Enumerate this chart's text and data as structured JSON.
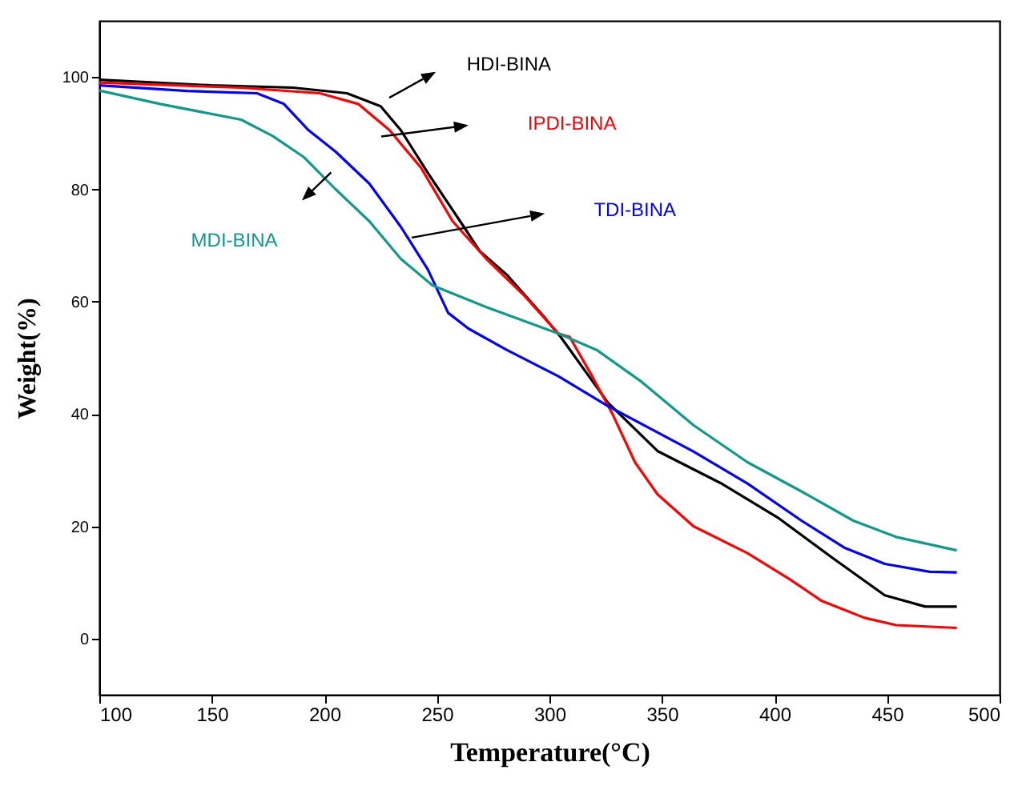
{
  "chart_data": {
    "type": "line",
    "xlabel": "Temperature(°C)",
    "ylabel": "Weight(%)",
    "xlim": [
      100,
      500
    ],
    "ylim": [
      -10,
      110
    ],
    "xticks": [
      100,
      150,
      200,
      250,
      300,
      350,
      400,
      450,
      500
    ],
    "yticks": [
      0,
      20,
      40,
      60,
      80,
      100
    ],
    "grid": false,
    "marker": "none",
    "line_style": "solid",
    "series": [
      {
        "name": "HDI-BINA",
        "color": "#000000",
        "x": [
          100,
          150,
          186,
          210,
          225,
          234,
          246,
          262,
          269,
          281,
          298,
          305,
          326,
          348,
          376,
          402,
          426,
          449,
          467,
          481
        ],
        "values": [
          99.5,
          98.5,
          98.1,
          97.1,
          94.8,
          90.5,
          82.9,
          73.3,
          69,
          64.8,
          57.1,
          53.7,
          42,
          33.4,
          27.7,
          21.4,
          14.3,
          7.7,
          5.7,
          5.7
        ]
      },
      {
        "name": "IPDI-BINA",
        "color": "#ff0000",
        "x": [
          100,
          163,
          198,
          215,
          229,
          243,
          257,
          272,
          289,
          304,
          309,
          319,
          328,
          338,
          348,
          364,
          388,
          407,
          421,
          440,
          454,
          481
        ],
        "values": [
          99,
          98.1,
          97.1,
          95.2,
          90.5,
          83.8,
          74.3,
          67.6,
          61,
          54.3,
          53.7,
          46.7,
          40,
          31.4,
          25.7,
          20,
          15.2,
          10.5,
          6.7,
          3.7,
          2.4,
          1.9
        ]
      },
      {
        "name": "TDI-BINA",
        "color": "#0000ff",
        "x": [
          100,
          139,
          170,
          182,
          193,
          205,
          220,
          234,
          246,
          255,
          264,
          281,
          304,
          326,
          364,
          388,
          412,
          431,
          449,
          469,
          481
        ],
        "values": [
          98.5,
          97.5,
          97.1,
          95.2,
          90.5,
          86.7,
          81,
          73.3,
          65.7,
          58,
          55.2,
          51.4,
          46.7,
          41.4,
          33.3,
          27.6,
          21,
          16.2,
          13.3,
          11.9,
          11.8
        ]
      },
      {
        "name": "MDI-BINA",
        "color": "#119a8a",
        "x": [
          100,
          127,
          163,
          177,
          191,
          205,
          220,
          234,
          248,
          272,
          304,
          321,
          341,
          364,
          388,
          412,
          435,
          454,
          481
        ],
        "values": [
          97.6,
          95.2,
          92.4,
          89.5,
          85.7,
          80,
          74.3,
          67.6,
          62.9,
          59,
          54.3,
          51.4,
          45.7,
          38,
          31.4,
          26.2,
          21,
          18.1,
          15.7
        ]
      }
    ]
  }
}
